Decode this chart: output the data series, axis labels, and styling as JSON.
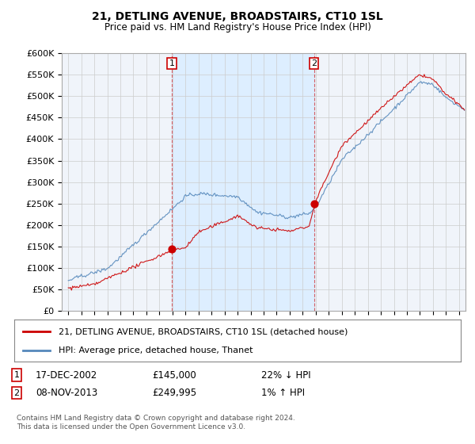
{
  "title": "21, DETLING AVENUE, BROADSTAIRS, CT10 1SL",
  "subtitle": "Price paid vs. HM Land Registry's House Price Index (HPI)",
  "legend_label_red": "21, DETLING AVENUE, BROADSTAIRS, CT10 1SL (detached house)",
  "legend_label_blue": "HPI: Average price, detached house, Thanet",
  "annotation1_label": "1",
  "annotation1_date": "17-DEC-2002",
  "annotation1_price": "£145,000",
  "annotation1_hpi": "22% ↓ HPI",
  "annotation2_label": "2",
  "annotation2_date": "08-NOV-2013",
  "annotation2_price": "£249,995",
  "annotation2_hpi": "1% ↑ HPI",
  "footer": "Contains HM Land Registry data © Crown copyright and database right 2024.\nThis data is licensed under the Open Government Licence v3.0.",
  "red_color": "#cc0000",
  "blue_color": "#5588bb",
  "shade_color": "#ddeeff",
  "background_color": "#ffffff",
  "grid_color": "#cccccc",
  "ylim": [
    0,
    600000
  ],
  "yticks": [
    0,
    50000,
    100000,
    150000,
    200000,
    250000,
    300000,
    350000,
    400000,
    450000,
    500000,
    550000,
    600000
  ],
  "ytick_labels": [
    "£0",
    "£50K",
    "£100K",
    "£150K",
    "£200K",
    "£250K",
    "£300K",
    "£350K",
    "£400K",
    "£450K",
    "£500K",
    "£550K",
    "£600K"
  ],
  "ann1_x": 2002.96,
  "ann1_y": 145000,
  "ann2_x": 2013.87,
  "ann2_y": 249995,
  "xlim_left": 1994.5,
  "xlim_right": 2025.5
}
